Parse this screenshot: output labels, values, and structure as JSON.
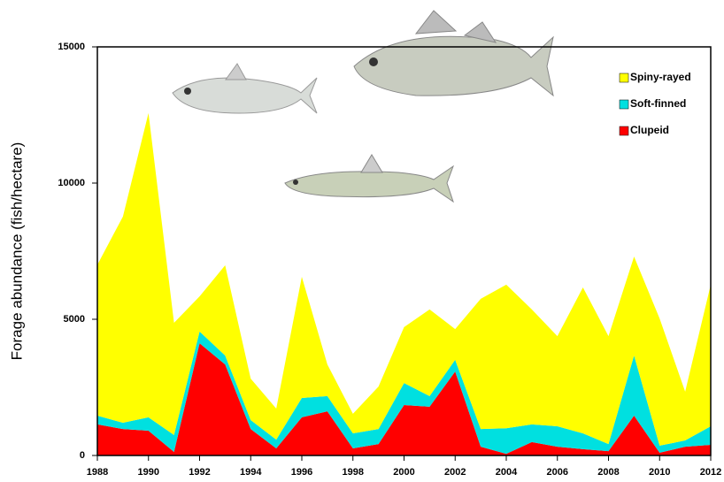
{
  "chart_data": {
    "type": "stacked-area",
    "y_label": "Forage abundance (fish/hectare)",
    "x": [
      1988,
      1989,
      1990,
      1991,
      1992,
      1993,
      1994,
      1995,
      1996,
      1997,
      1998,
      1999,
      2000,
      2001,
      2002,
      2003,
      2004,
      2005,
      2006,
      2007,
      2008,
      2009,
      2010,
      2011,
      2012
    ],
    "series": [
      {
        "name": "Clupeid",
        "color": "#ff0000",
        "values": [
          1140,
          970,
          910,
          130,
          4120,
          3340,
          970,
          260,
          1400,
          1620,
          260,
          420,
          1850,
          1790,
          3080,
          320,
          60,
          490,
          320,
          230,
          160,
          1460,
          100,
          320,
          390
        ]
      },
      {
        "name": "Soft-finned",
        "color": "#00e0e0",
        "values": [
          320,
          230,
          490,
          620,
          430,
          330,
          330,
          320,
          710,
          560,
          550,
          550,
          810,
          390,
          430,
          650,
          940,
          650,
          750,
          580,
          260,
          2210,
          260,
          230,
          680
        ]
      },
      {
        "name": "Spiny-rayed",
        "color": "#ffff00",
        "values": [
          5540,
          7570,
          11170,
          4120,
          1290,
          3310,
          1520,
          1140,
          4450,
          1160,
          720,
          1560,
          2050,
          3180,
          1130,
          4780,
          5270,
          4220,
          3310,
          5360,
          3960,
          3630,
          4670,
          1790,
          5200
        ]
      }
    ],
    "xlim": [
      1988,
      2012
    ],
    "xticks": [
      1988,
      1990,
      1992,
      1994,
      1996,
      1998,
      2000,
      2002,
      2004,
      2006,
      2008,
      2010,
      2012
    ],
    "ylim": [
      0,
      15000
    ],
    "yticks": [
      0,
      5000,
      10000,
      15000
    ],
    "legend": "upper right"
  }
}
